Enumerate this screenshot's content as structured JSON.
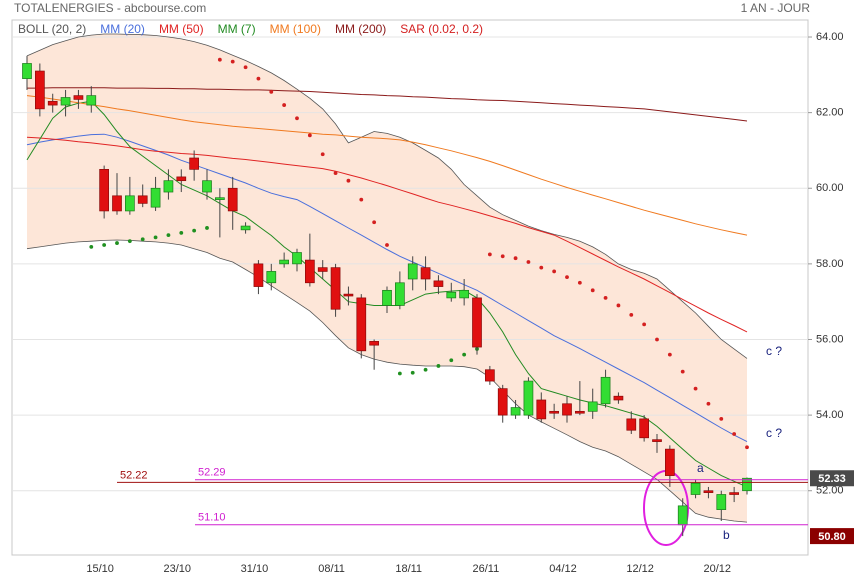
{
  "chart_data": {
    "type": "candlestick",
    "title": "TOTALENERGIES - abcbourse.com",
    "period": "1 AN - JOUR",
    "categories": [
      null,
      null,
      null,
      null,
      null,
      null,
      "15/10",
      null,
      null,
      null,
      null,
      null,
      "23/10",
      null,
      null,
      null,
      null,
      null,
      "31/10",
      null,
      null,
      null,
      null,
      null,
      "08/11",
      null,
      null,
      null,
      null,
      null,
      "18/11",
      null,
      null,
      null,
      null,
      null,
      "26/11",
      null,
      null,
      null,
      null,
      null,
      "04/12",
      null,
      null,
      null,
      null,
      null,
      "12/12",
      null,
      null,
      null,
      null,
      null,
      "20/12",
      null,
      null
    ],
    "open": [
      62.9,
      63.1,
      62.3,
      62.2,
      62.45,
      62.2,
      60.5,
      59.8,
      59.4,
      59.8,
      59.5,
      59.9,
      60.3,
      60.8,
      59.9,
      59.7,
      60.0,
      58.9,
      58.0,
      57.5,
      58.0,
      58.0,
      58.1,
      57.9,
      57.9,
      57.2,
      57.1,
      55.95,
      56.9,
      56.9,
      57.6,
      57.9,
      57.55,
      57.1,
      57.1,
      57.1,
      55.2,
      54.7,
      54.0,
      54.0,
      54.4,
      54.1,
      54.3,
      54.1,
      54.1,
      54.3,
      54.5,
      53.9,
      53.9,
      53.35,
      53.1,
      51.1,
      51.9,
      52.0,
      51.5,
      51.95,
      52.0
    ],
    "high": [
      63.5,
      63.3,
      62.5,
      62.6,
      62.6,
      62.7,
      60.6,
      60.4,
      60.3,
      60.1,
      60.3,
      60.5,
      60.5,
      61.0,
      60.5,
      60.0,
      60.3,
      59.1,
      58.1,
      58.0,
      58.3,
      58.4,
      58.8,
      58.1,
      58.0,
      57.4,
      57.2,
      56.0,
      57.4,
      57.8,
      58.2,
      58.2,
      57.7,
      57.5,
      57.6,
      57.2,
      55.3,
      54.8,
      54.4,
      55.0,
      54.6,
      54.3,
      54.5,
      54.9,
      54.7,
      55.2,
      54.6,
      54.1,
      54.0,
      53.5,
      53.2,
      51.8,
      52.3,
      52.1,
      52.0,
      52.1,
      52.35
    ],
    "low": [
      62.6,
      61.9,
      62.0,
      61.9,
      62.1,
      62.0,
      59.2,
      59.3,
      59.3,
      59.5,
      59.4,
      59.7,
      59.9,
      60.2,
      59.7,
      58.7,
      58.9,
      58.8,
      57.2,
      57.3,
      57.9,
      57.8,
      57.4,
      57.6,
      56.6,
      56.9,
      55.5,
      55.2,
      56.7,
      56.8,
      57.3,
      57.3,
      57.2,
      57.0,
      56.9,
      55.6,
      54.8,
      53.8,
      53.9,
      53.9,
      53.8,
      53.9,
      53.8,
      54.0,
      53.9,
      54.2,
      54.3,
      53.5,
      53.3,
      53.0,
      52.1,
      50.8,
      51.8,
      51.8,
      51.2,
      51.7,
      51.9
    ],
    "close": [
      63.3,
      62.1,
      62.2,
      62.4,
      62.35,
      62.45,
      59.4,
      59.4,
      59.8,
      59.6,
      60.0,
      60.2,
      60.2,
      60.5,
      60.2,
      59.75,
      59.4,
      59.0,
      57.4,
      57.8,
      58.1,
      58.3,
      57.5,
      57.8,
      56.8,
      57.15,
      55.7,
      55.85,
      57.3,
      57.5,
      58.0,
      57.6,
      57.4,
      57.25,
      57.3,
      55.8,
      54.9,
      54.0,
      54.2,
      54.9,
      53.9,
      54.05,
      54.0,
      54.05,
      54.35,
      55.0,
      54.4,
      53.6,
      53.4,
      53.3,
      52.4,
      51.6,
      52.2,
      51.95,
      51.9,
      51.9,
      52.33
    ],
    "up_color": "#33dd33",
    "down_color": "#e01010",
    "bands": {
      "name": "BOLL (20, 2)",
      "color": "#555555",
      "fill": "#fde6d8",
      "upper": [
        63.5,
        63.65,
        63.8,
        63.9,
        64.0,
        64.05,
        64.08,
        64.08,
        64.07,
        64.06,
        64.04,
        64.0,
        63.95,
        63.88,
        63.78,
        63.66,
        63.52,
        63.38,
        63.22,
        63.05,
        62.85,
        62.62,
        62.38,
        62.1,
        61.7,
        61.2,
        61.35,
        61.5,
        61.45,
        61.35,
        61.2,
        61.0,
        60.8,
        60.5,
        60.1,
        59.8,
        59.5,
        59.3,
        59.15,
        59.0,
        58.88,
        58.78,
        58.7,
        58.6,
        58.45,
        58.25,
        58.0,
        57.85,
        57.75,
        57.6,
        57.3,
        57.0,
        56.7,
        56.35,
        56.0,
        55.75,
        55.5
      ],
      "lower": [
        58.4,
        58.45,
        58.5,
        58.55,
        58.58,
        58.6,
        58.62,
        58.63,
        58.62,
        58.6,
        58.58,
        58.55,
        58.5,
        58.4,
        58.3,
        58.15,
        58.05,
        57.85,
        57.65,
        57.42,
        57.2,
        56.98,
        56.75,
        56.45,
        56.1,
        55.78,
        55.6,
        55.48,
        55.4,
        55.35,
        55.32,
        55.3,
        55.3,
        55.3,
        55.28,
        55.22,
        55.0,
        54.65,
        54.3,
        54.0,
        53.82,
        53.65,
        53.48,
        53.3,
        53.15,
        53.05,
        52.9,
        52.7,
        52.5,
        52.3,
        52.0,
        51.7,
        51.4,
        51.3,
        51.25,
        51.2,
        51.17
      ]
    },
    "series": [
      {
        "name": "MM (20)",
        "color": "#4a6fdc",
        "values": [
          61.15,
          61.22,
          61.28,
          61.33,
          61.38,
          61.42,
          61.43,
          61.35,
          61.24,
          61.12,
          61.0,
          60.88,
          60.74,
          60.62,
          60.5,
          60.38,
          60.26,
          60.14,
          60.0,
          59.87,
          59.78,
          59.7,
          59.52,
          59.33,
          59.14,
          58.95,
          58.76,
          58.57,
          58.38,
          58.2,
          58.05,
          57.9,
          57.75,
          57.6,
          57.45,
          57.3,
          57.1,
          56.9,
          56.7,
          56.5,
          56.3,
          56.1,
          55.93,
          55.76,
          55.58,
          55.4,
          55.22,
          55.04,
          54.86,
          54.66,
          54.46,
          54.26,
          54.06,
          53.86,
          53.66,
          53.47,
          53.3
        ]
      },
      {
        "name": "MM (50)",
        "color": "#e02424",
        "values": [
          61.35,
          61.33,
          61.3,
          61.27,
          61.23,
          61.2,
          61.16,
          61.12,
          61.07,
          61.02,
          60.98,
          60.95,
          60.92,
          60.9,
          60.87,
          60.83,
          60.79,
          60.76,
          60.72,
          60.68,
          60.64,
          60.6,
          60.56,
          60.52,
          60.45,
          60.36,
          60.27,
          60.17,
          60.07,
          59.96,
          59.85,
          59.74,
          59.63,
          59.55,
          59.46,
          59.37,
          59.27,
          59.17,
          59.07,
          58.96,
          58.86,
          58.76,
          58.6,
          58.43,
          58.26,
          58.09,
          57.92,
          57.76,
          57.6,
          57.42,
          57.24,
          57.06,
          56.88,
          56.7,
          56.53,
          56.37,
          56.2
        ]
      },
      {
        "name": "MM (7)",
        "color": "#228b22",
        "values": [
          60.75,
          61.3,
          61.85,
          62.15,
          62.25,
          62.3,
          61.95,
          61.5,
          61.1,
          60.85,
          60.6,
          60.35,
          60.1,
          59.95,
          59.8,
          59.6,
          59.4,
          59.25,
          59.0,
          58.75,
          58.45,
          58.2,
          57.9,
          57.6,
          57.3,
          57.0,
          56.95,
          56.9,
          56.9,
          56.9,
          57.05,
          57.2,
          57.25,
          57.28,
          57.3,
          57.1,
          56.7,
          56.2,
          55.6,
          55.1,
          54.7,
          54.6,
          54.5,
          54.4,
          54.32,
          54.25,
          54.15,
          54.05,
          53.95,
          53.7,
          53.4,
          53.1,
          52.8,
          52.6,
          52.4,
          52.25,
          52.1
        ]
      },
      {
        "name": "MM (100)",
        "color": "#f07a20",
        "values": [
          62.45,
          62.41,
          62.36,
          62.31,
          62.26,
          62.21,
          62.16,
          62.1,
          62.05,
          61.99,
          61.93,
          61.87,
          61.81,
          61.76,
          61.72,
          61.68,
          61.64,
          61.61,
          61.58,
          61.55,
          61.52,
          61.49,
          61.46,
          61.43,
          61.41,
          61.38,
          61.35,
          61.33,
          61.31,
          61.28,
          61.22,
          61.15,
          61.07,
          60.99,
          60.9,
          60.81,
          60.71,
          60.6,
          60.48,
          60.36,
          60.24,
          60.13,
          60.02,
          59.92,
          59.82,
          59.72,
          59.62,
          59.52,
          59.42,
          59.33,
          59.24,
          59.15,
          59.06,
          58.98,
          58.9,
          58.83,
          58.76
        ]
      },
      {
        "name": "MM (200)",
        "color": "#8b1a1a",
        "values": [
          62.65,
          62.65,
          62.66,
          62.66,
          62.66,
          62.66,
          62.66,
          62.65,
          62.65,
          62.65,
          62.64,
          62.64,
          62.63,
          62.63,
          62.62,
          62.62,
          62.61,
          62.6,
          62.6,
          62.59,
          62.58,
          62.57,
          62.56,
          62.54,
          62.52,
          62.5,
          62.48,
          62.47,
          62.45,
          62.44,
          62.42,
          62.41,
          62.39,
          62.37,
          62.36,
          62.34,
          62.33,
          62.32,
          62.3,
          62.28,
          62.26,
          62.24,
          62.22,
          62.2,
          62.18,
          62.16,
          62.14,
          62.12,
          62.1,
          62.06,
          62.02,
          61.98,
          61.94,
          61.9,
          61.86,
          61.82,
          61.78
        ]
      },
      {
        "name": "SAR (0.02, 0.2)",
        "style": "dots",
        "colors": {
          "above": "#d42020",
          "below": "#209020"
        },
        "values": [
          null,
          null,
          null,
          null,
          null,
          58.45,
          58.5,
          58.55,
          58.6,
          58.65,
          58.7,
          58.76,
          58.82,
          58.88,
          58.95,
          63.4,
          63.35,
          63.2,
          62.9,
          62.55,
          62.2,
          61.85,
          61.4,
          60.9,
          60.4,
          60.2,
          59.7,
          59.1,
          58.5,
          55.1,
          55.12,
          55.2,
          55.3,
          55.45,
          55.6,
          55.75,
          58.25,
          58.2,
          58.15,
          58.05,
          57.9,
          57.8,
          57.65,
          57.5,
          57.3,
          57.1,
          56.9,
          56.65,
          56.4,
          56.0,
          55.6,
          55.15,
          54.7,
          54.3,
          53.9,
          53.5,
          53.15
        ]
      }
    ],
    "hlines": [
      {
        "value": 52.22,
        "color": "#a01010"
      },
      {
        "value": 52.29,
        "color": "#d020d0"
      },
      {
        "value": 51.1,
        "label": "51.10",
        "color": "#d020d0"
      }
    ],
    "price_labels": [
      {
        "value": 52.33,
        "color": "#4a4a4a"
      },
      {
        "value": 50.8,
        "label": "50.80",
        "color": "#8b0000"
      }
    ],
    "annotations": [
      "a",
      "b",
      "c ?",
      "c ?"
    ],
    "ylim": [
      50.3,
      64.45
    ],
    "yticks": [
      {
        "value": 52,
        "label": "52.00"
      },
      {
        "value": 54,
        "label": "54.00"
      },
      {
        "value": 56,
        "label": "56.00"
      },
      {
        "value": 58,
        "label": "58.00"
      },
      {
        "value": 60,
        "label": "60.00"
      },
      {
        "value": 62,
        "label": "62.00"
      },
      {
        "value": 64,
        "label": "64.00"
      }
    ],
    "grid": true
  }
}
